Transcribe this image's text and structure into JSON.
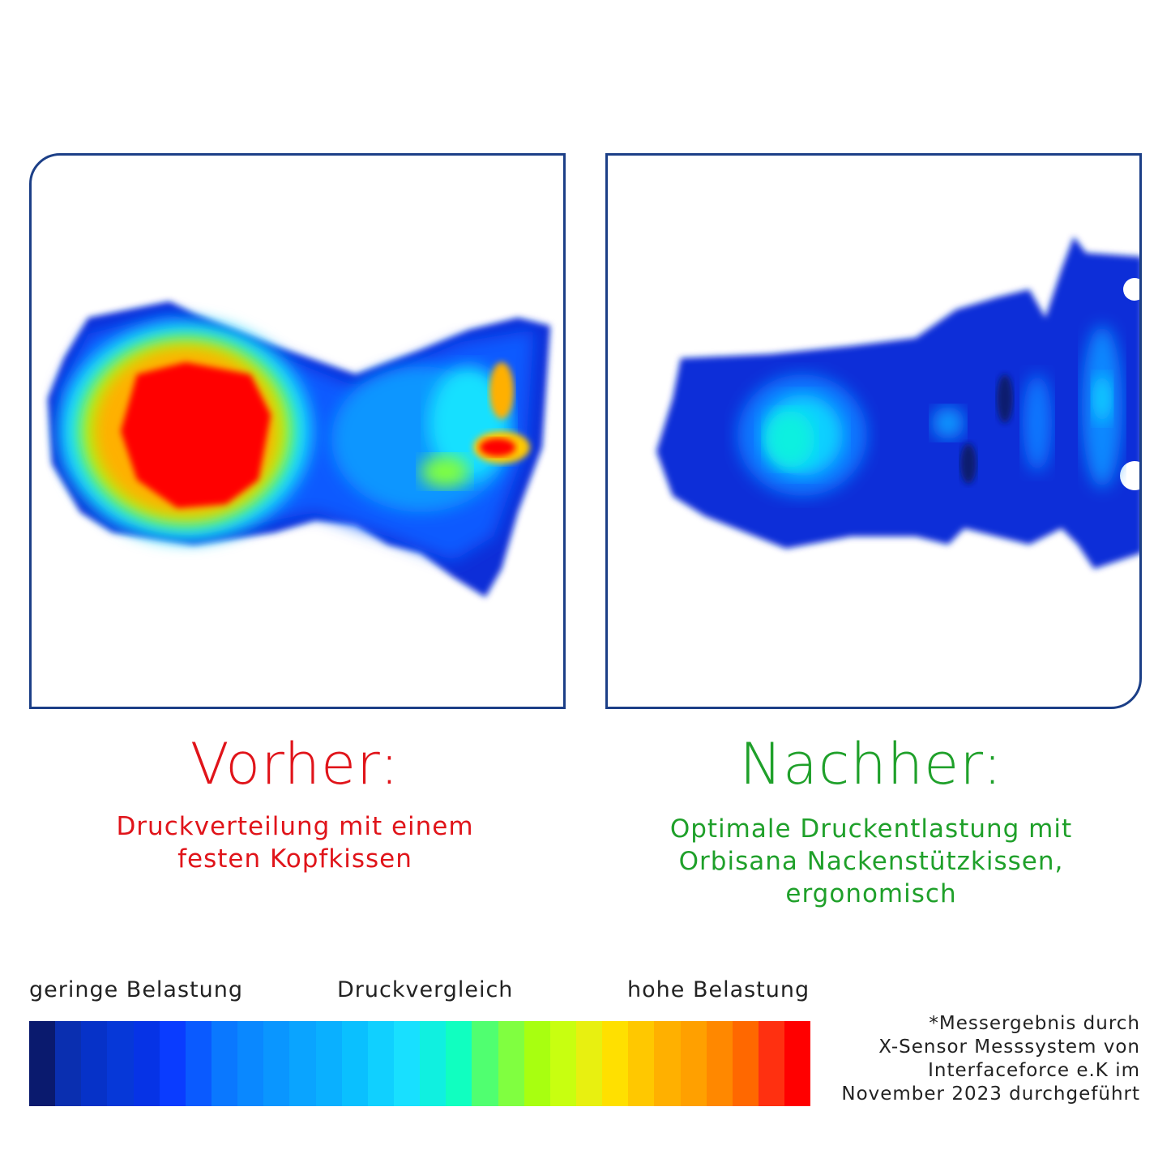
{
  "before": {
    "heading": "Vorher:",
    "description_line1": "Druckverteilung mit einem",
    "description_line2": "festen Kopfkissen",
    "color": "#e0141a"
  },
  "after": {
    "heading": "Nachher:",
    "description_line1": "Optimale Druckentlastung mit",
    "description_line2": "Orbisana Nackenstützkissen,",
    "description_line3": "ergonomisch",
    "color": "#1fa02a"
  },
  "scale": {
    "low_label": "geringe Belastung",
    "mid_label": "Druckvergleich",
    "high_label": "hohe Belastung",
    "colors": [
      "#0a1a6e",
      "#0a2fb0",
      "#0632c8",
      "#0638d8",
      "#0633e6",
      "#0a3cff",
      "#0a5aff",
      "#0a78ff",
      "#0a88ff",
      "#0a96ff",
      "#0aa4ff",
      "#0ab0ff",
      "#0ac0ff",
      "#10d0ff",
      "#18e0ff",
      "#10f0e0",
      "#10ffc0",
      "#50ff70",
      "#80ff40",
      "#a8ff10",
      "#c8ff10",
      "#e8f010",
      "#ffe000",
      "#ffc800",
      "#ffb000",
      "#ffa000",
      "#ff8800",
      "#ff6800",
      "#ff3010",
      "#ff0000"
    ]
  },
  "footnote": {
    "line1": "*Messergebnis durch",
    "line2": "X-Sensor Messsystem von",
    "line3": "Interfaceforce e.K im",
    "line4": "November 2023 durchgeführt"
  },
  "frame_color": "#1c3f87"
}
